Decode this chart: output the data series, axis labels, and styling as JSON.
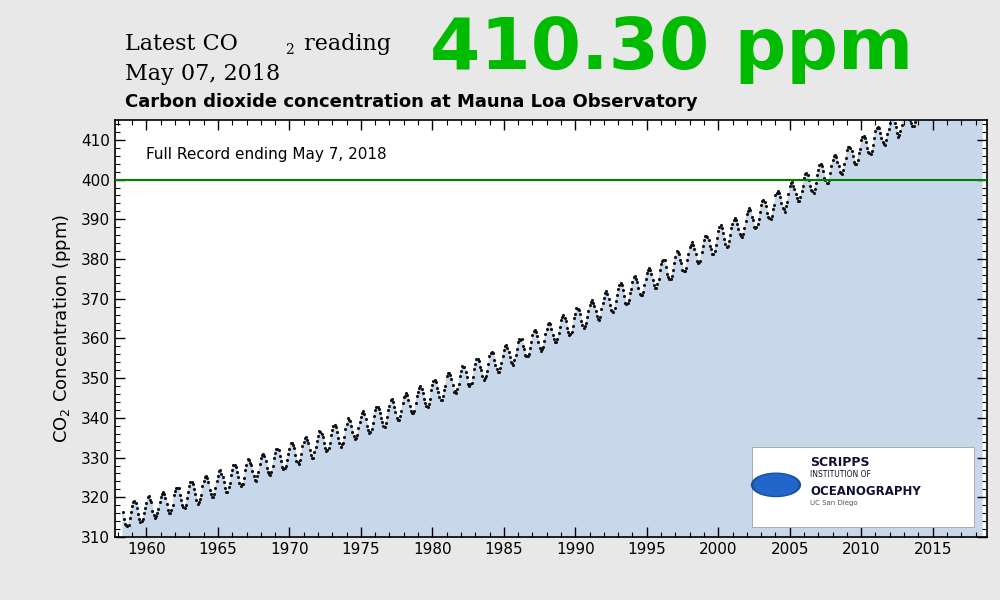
{
  "chart_title": "Carbon dioxide concentration at Mauna Loa Observatory",
  "annotation": "Full Record ending May 7, 2018",
  "ylabel": "CO₂ Concentration (ppm)",
  "xlim": [
    1957.8,
    2018.8
  ],
  "ylim": [
    310,
    415
  ],
  "yticks": [
    310,
    320,
    330,
    340,
    350,
    360,
    370,
    380,
    390,
    400,
    410
  ],
  "xticks": [
    1960,
    1965,
    1970,
    1975,
    1980,
    1985,
    1990,
    1995,
    2000,
    2005,
    2010,
    2015
  ],
  "hline_y": 400,
  "hline_color": "#008000",
  "fill_color": "#c8d8ea",
  "dot_color": "#111111",
  "dot_size": 5,
  "background_color": "#ffffff",
  "fig_bg": "#e8e8e8",
  "title_color": "#000000",
  "latest_color": "#00bb00",
  "latest_value": "410.30 ppm",
  "latest_fontsize": 52,
  "header_fontsize": 16,
  "subtitle_fontsize": 13
}
